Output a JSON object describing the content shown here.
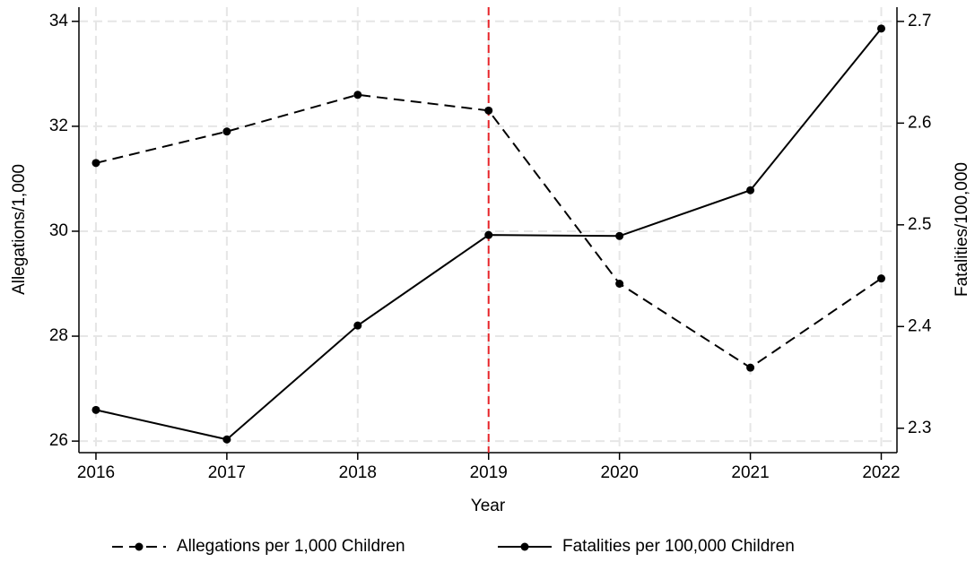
{
  "chart_data": {
    "type": "line",
    "x_label": "Year",
    "y_label": "Allegations/1,000",
    "y2_label": "Fatalities/100,000",
    "x": [
      2016,
      2017,
      2018,
      2019,
      2020,
      2021,
      2022
    ],
    "xlim": [
      2015.87,
      2022.12
    ],
    "xticks": [
      2016,
      2017,
      2018,
      2019,
      2020,
      2021,
      2022
    ],
    "ylim": [
      25.78,
      34.27
    ],
    "yticks": [
      26,
      28,
      30,
      32,
      34
    ],
    "y2lim": [
      2.276,
      2.714
    ],
    "y2ticks": [
      2.3,
      2.4,
      2.5,
      2.6,
      2.7
    ],
    "grid": true,
    "grid_color": "#e6e6e6",
    "vline": {
      "x": 2019,
      "color": "#e8262b"
    },
    "legend": "bottom",
    "series": [
      {
        "name": "Allegations per 1,000 Children",
        "color": "#000000",
        "linestyle": "dashed",
        "axis": "y",
        "values": [
          31.3,
          31.9,
          32.6,
          32.3,
          29.0,
          27.4,
          29.1
        ]
      },
      {
        "name": "Fatalities per 100,000 Children",
        "color": "#000000",
        "linestyle": "solid",
        "axis": "y2",
        "values": [
          2.318,
          2.289,
          2.401,
          2.49,
          2.489,
          2.534,
          2.693
        ]
      }
    ]
  }
}
